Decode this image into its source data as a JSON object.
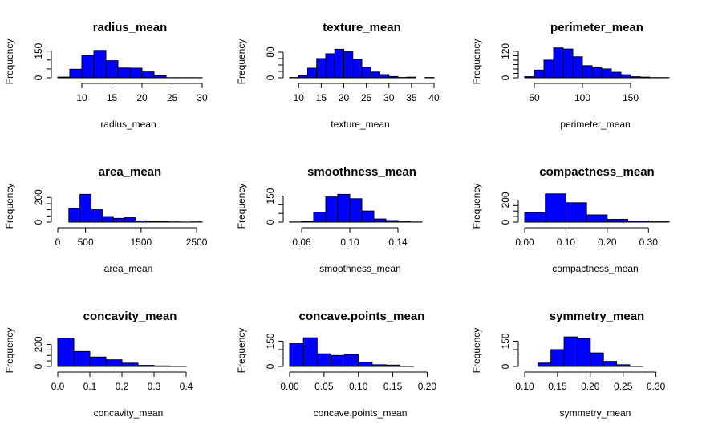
{
  "colors": {
    "bar_fill": "#0000ff",
    "bar_stroke": "#000000",
    "axis": "#000000"
  },
  "chart_data": [
    {
      "type": "bar",
      "title": "radius_mean",
      "xlabel": "radius_mean",
      "ylabel": "Frequency",
      "bin_edges": [
        6,
        8,
        10,
        12,
        14,
        16,
        18,
        20,
        22,
        24,
        26,
        28,
        30
      ],
      "values": [
        4,
        48,
        125,
        154,
        96,
        55,
        54,
        33,
        12,
        1,
        1,
        1
      ],
      "xlim": [
        6,
        30
      ],
      "xticks": [
        10,
        15,
        20,
        25,
        30
      ],
      "xtick_labels": [
        "10",
        "15",
        "20",
        "25",
        "30"
      ],
      "yticks": [
        0,
        150
      ],
      "ytick_labels": [
        "0",
        "150"
      ],
      "ymax": 180
    },
    {
      "type": "bar",
      "title": "texture_mean",
      "xlabel": "texture_mean",
      "ylabel": "Frequency",
      "bin_edges": [
        8,
        10,
        12,
        14,
        16,
        18,
        20,
        22,
        24,
        26,
        28,
        30,
        32,
        34,
        36,
        38,
        40
      ],
      "values": [
        1,
        7,
        30,
        60,
        75,
        89,
        81,
        57,
        33,
        18,
        10,
        4,
        1,
        2,
        0,
        1
      ],
      "xlim": [
        8,
        40
      ],
      "xticks": [
        10,
        15,
        20,
        25,
        30,
        35,
        40
      ],
      "xtick_labels": [
        "10",
        "15",
        "20",
        "25",
        "30",
        "35",
        "40"
      ],
      "yticks": [
        0,
        80
      ],
      "ytick_labels": [
        "0",
        "80"
      ],
      "ymax": 100
    },
    {
      "type": "bar",
      "title": "perimeter_mean",
      "xlabel": "perimeter_mean",
      "ylabel": "Frequency",
      "bin_edges": [
        40,
        50,
        60,
        70,
        80,
        90,
        100,
        110,
        120,
        130,
        140,
        150,
        160,
        170,
        180,
        190
      ],
      "values": [
        5,
        35,
        80,
        135,
        130,
        95,
        55,
        45,
        40,
        25,
        14,
        5,
        3,
        1,
        1
      ],
      "xlim": [
        40,
        190
      ],
      "xticks": [
        50,
        100,
        150
      ],
      "xtick_labels": [
        "50",
        "100",
        "150"
      ],
      "yticks": [
        0,
        120
      ],
      "ytick_labels": [
        "0",
        "120"
      ],
      "ymax": 145
    },
    {
      "type": "bar",
      "title": "area_mean",
      "xlabel": "area_mean",
      "ylabel": "Frequency",
      "bin_edges": [
        0,
        200,
        400,
        600,
        800,
        1000,
        1200,
        1400,
        1600,
        1800,
        2000,
        2200,
        2400,
        2600
      ],
      "values": [
        0,
        110,
        225,
        100,
        45,
        30,
        35,
        10,
        3,
        3,
        2,
        1,
        2
      ],
      "xlim": [
        0,
        2600
      ],
      "xticks": [
        0,
        500,
        1500,
        2500
      ],
      "xtick_labels": [
        "0",
        "500",
        "1500",
        "2500"
      ],
      "yticks": [
        0,
        200
      ],
      "ytick_labels": [
        "0",
        "200"
      ],
      "ymax": 260
    },
    {
      "type": "bar",
      "title": "smoothness_mean",
      "xlabel": "smoothness_mean",
      "ylabel": "Frequency",
      "bin_edges": [
        0.05,
        0.06,
        0.07,
        0.08,
        0.09,
        0.1,
        0.11,
        0.12,
        0.13,
        0.14,
        0.15,
        0.16,
        0.17
      ],
      "values": [
        1,
        5,
        57,
        145,
        160,
        135,
        64,
        18,
        9,
        2,
        1,
        0
      ],
      "xlim": [
        0.05,
        0.17
      ],
      "xticks": [
        0.06,
        0.1,
        0.14
      ],
      "xtick_labels": [
        "0.06",
        "0.10",
        "0.14"
      ],
      "yticks": [
        0,
        150
      ],
      "ytick_labels": [
        "0",
        "150"
      ],
      "ymax": 185
    },
    {
      "type": "bar",
      "title": "compactness_mean",
      "xlabel": "compactness_mean",
      "ylabel": "Frequency",
      "bin_edges": [
        0.0,
        0.05,
        0.1,
        0.15,
        0.2,
        0.25,
        0.3,
        0.35
      ],
      "values": [
        85,
        255,
        175,
        65,
        25,
        10,
        3
      ],
      "xlim": [
        0,
        0.35
      ],
      "xticks": [
        0.0,
        0.1,
        0.2,
        0.3
      ],
      "xtick_labels": [
        "0.00",
        "0.10",
        "0.20",
        "0.30"
      ],
      "yticks": [
        0,
        200
      ],
      "ytick_labels": [
        "0",
        "200"
      ],
      "ymax": 290
    },
    {
      "type": "bar",
      "title": "concavity_mean",
      "xlabel": "concavity_mean",
      "ylabel": "Frequency",
      "bin_edges": [
        0.0,
        0.05,
        0.1,
        0.15,
        0.2,
        0.25,
        0.3,
        0.35,
        0.4,
        0.45
      ],
      "values": [
        255,
        135,
        85,
        60,
        30,
        10,
        5,
        1,
        0
      ],
      "xlim": [
        0,
        0.45
      ],
      "xticks": [
        0.0,
        0.1,
        0.2,
        0.3,
        0.4
      ],
      "xtick_labels": [
        "0.0",
        "0.1",
        "0.2",
        "0.3",
        "0.4"
      ],
      "yticks": [
        0,
        200
      ],
      "ytick_labels": [
        "0",
        "200"
      ],
      "ymax": 290
    },
    {
      "type": "bar",
      "title": "concave.points_mean",
      "xlabel": "concave.points_mean",
      "ylabel": "Frequency",
      "bin_edges": [
        0.0,
        0.02,
        0.04,
        0.06,
        0.08,
        0.1,
        0.12,
        0.14,
        0.16,
        0.18,
        0.2
      ],
      "values": [
        135,
        170,
        75,
        65,
        70,
        25,
        10,
        8,
        1,
        0
      ],
      "xlim": [
        0,
        0.21
      ],
      "xticks": [
        0.0,
        0.05,
        0.1,
        0.15,
        0.2
      ],
      "xtick_labels": [
        "0.00",
        "0.05",
        "0.10",
        "0.15",
        "0.20"
      ],
      "yticks": [
        0,
        150
      ],
      "ytick_labels": [
        "0",
        "150"
      ],
      "ymax": 190
    },
    {
      "type": "bar",
      "title": "symmetry_mean",
      "xlabel": "symmetry_mean",
      "ylabel": "Frequency",
      "bin_edges": [
        0.1,
        0.12,
        0.14,
        0.16,
        0.18,
        0.2,
        0.22,
        0.24,
        0.26,
        0.28,
        0.3,
        0.32
      ],
      "values": [
        0,
        20,
        100,
        175,
        165,
        80,
        30,
        10,
        1,
        0,
        0
      ],
      "xlim": [
        0.1,
        0.32
      ],
      "xticks": [
        0.1,
        0.15,
        0.2,
        0.25,
        0.3
      ],
      "xtick_labels": [
        "0.10",
        "0.15",
        "0.20",
        "0.25",
        "0.30"
      ],
      "yticks": [
        0,
        150
      ],
      "ytick_labels": [
        "0",
        "150"
      ],
      "ymax": 190
    }
  ]
}
